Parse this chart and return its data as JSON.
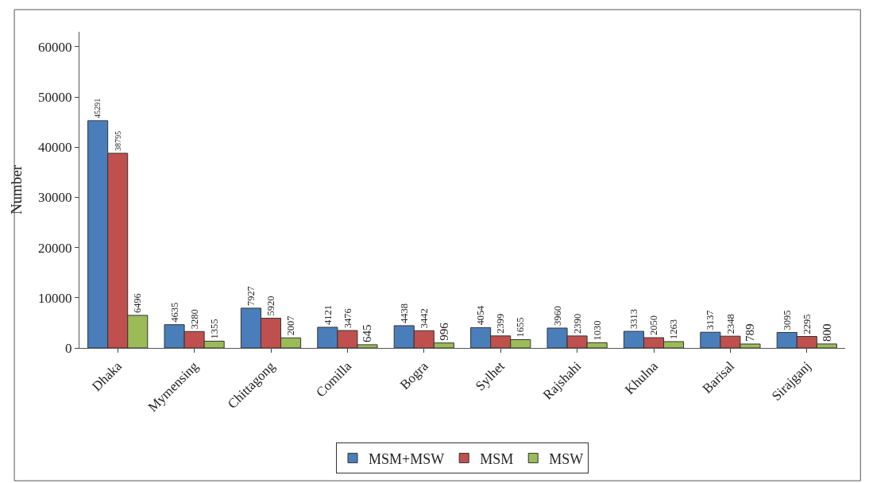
{
  "chart_data": {
    "type": "bar",
    "ylabel": "Number",
    "categories": [
      "Dhaka",
      "Mymensing",
      "Chittagong",
      "Comilla",
      "Bogra",
      "Sylhet",
      "Rajshahi",
      "Khulna",
      "Barisal",
      "Sirajganj"
    ],
    "series": [
      {
        "name": "MSM+MSW",
        "color": "#4a7ebb",
        "values": [
          45291,
          4635,
          7927,
          4121,
          4438,
          4054,
          3960,
          3313,
          3137,
          3095
        ]
      },
      {
        "name": "MSM",
        "color": "#c0504d",
        "values": [
          38795,
          3280,
          5920,
          3476,
          3442,
          2399,
          2390,
          2050,
          2348,
          2295
        ]
      },
      {
        "name": "MSW",
        "color": "#9bbb59",
        "values": [
          6496,
          1355,
          2007,
          645,
          996,
          1655,
          1030,
          1263,
          789,
          800
        ]
      }
    ],
    "ylim": [
      0,
      63000
    ],
    "yticks": [
      0,
      10000,
      20000,
      30000,
      40000,
      50000,
      60000
    ],
    "data_labels": true,
    "grid": false,
    "legend": "bottom"
  }
}
